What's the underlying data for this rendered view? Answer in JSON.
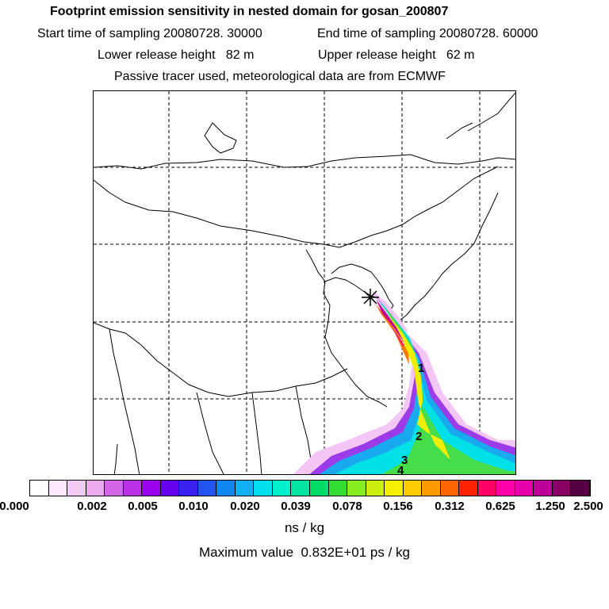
{
  "header": {
    "title": "Footprint emission sensitivity in nested domain for gosan_200807",
    "start_time": "Start time of sampling 20080728. 30000",
    "end_time": "End time of sampling 20080728. 60000",
    "lower_release": "Lower release height   82 m",
    "upper_release": "Upper release height   62 m",
    "tracer_note": "Passive tracer used, meteorological data are from ECMWF"
  },
  "map": {
    "trajectory_labels": [
      "1",
      "2",
      "3",
      "4"
    ]
  },
  "colorbar": {
    "colors": [
      "#ffffff",
      "#fbe9fb",
      "#f4cbf4",
      "#eeaaee",
      "#d466e8",
      "#bb33e8",
      "#9900ee",
      "#6600ee",
      "#3a22ee",
      "#2255f0",
      "#1188f0",
      "#11b0f0",
      "#00ddee",
      "#00f0cc",
      "#00e5a0",
      "#00dd66",
      "#33dd33",
      "#88ee22",
      "#ccee11",
      "#f5f000",
      "#ffcc00",
      "#ff9900",
      "#ff6600",
      "#ff2200",
      "#ff0066",
      "#ff00aa",
      "#e600aa",
      "#bb0099",
      "#880066",
      "#550044"
    ],
    "tick_labels": [
      "0.000",
      "0.002",
      "0.005",
      "0.010",
      "0.020",
      "0.039",
      "0.078",
      "0.156",
      "0.312",
      "0.625",
      "1.250",
      "2.500"
    ],
    "unit": "ns / kg"
  },
  "footer": {
    "max_value": "Maximum value  0.832E+01 ps / kg"
  }
}
